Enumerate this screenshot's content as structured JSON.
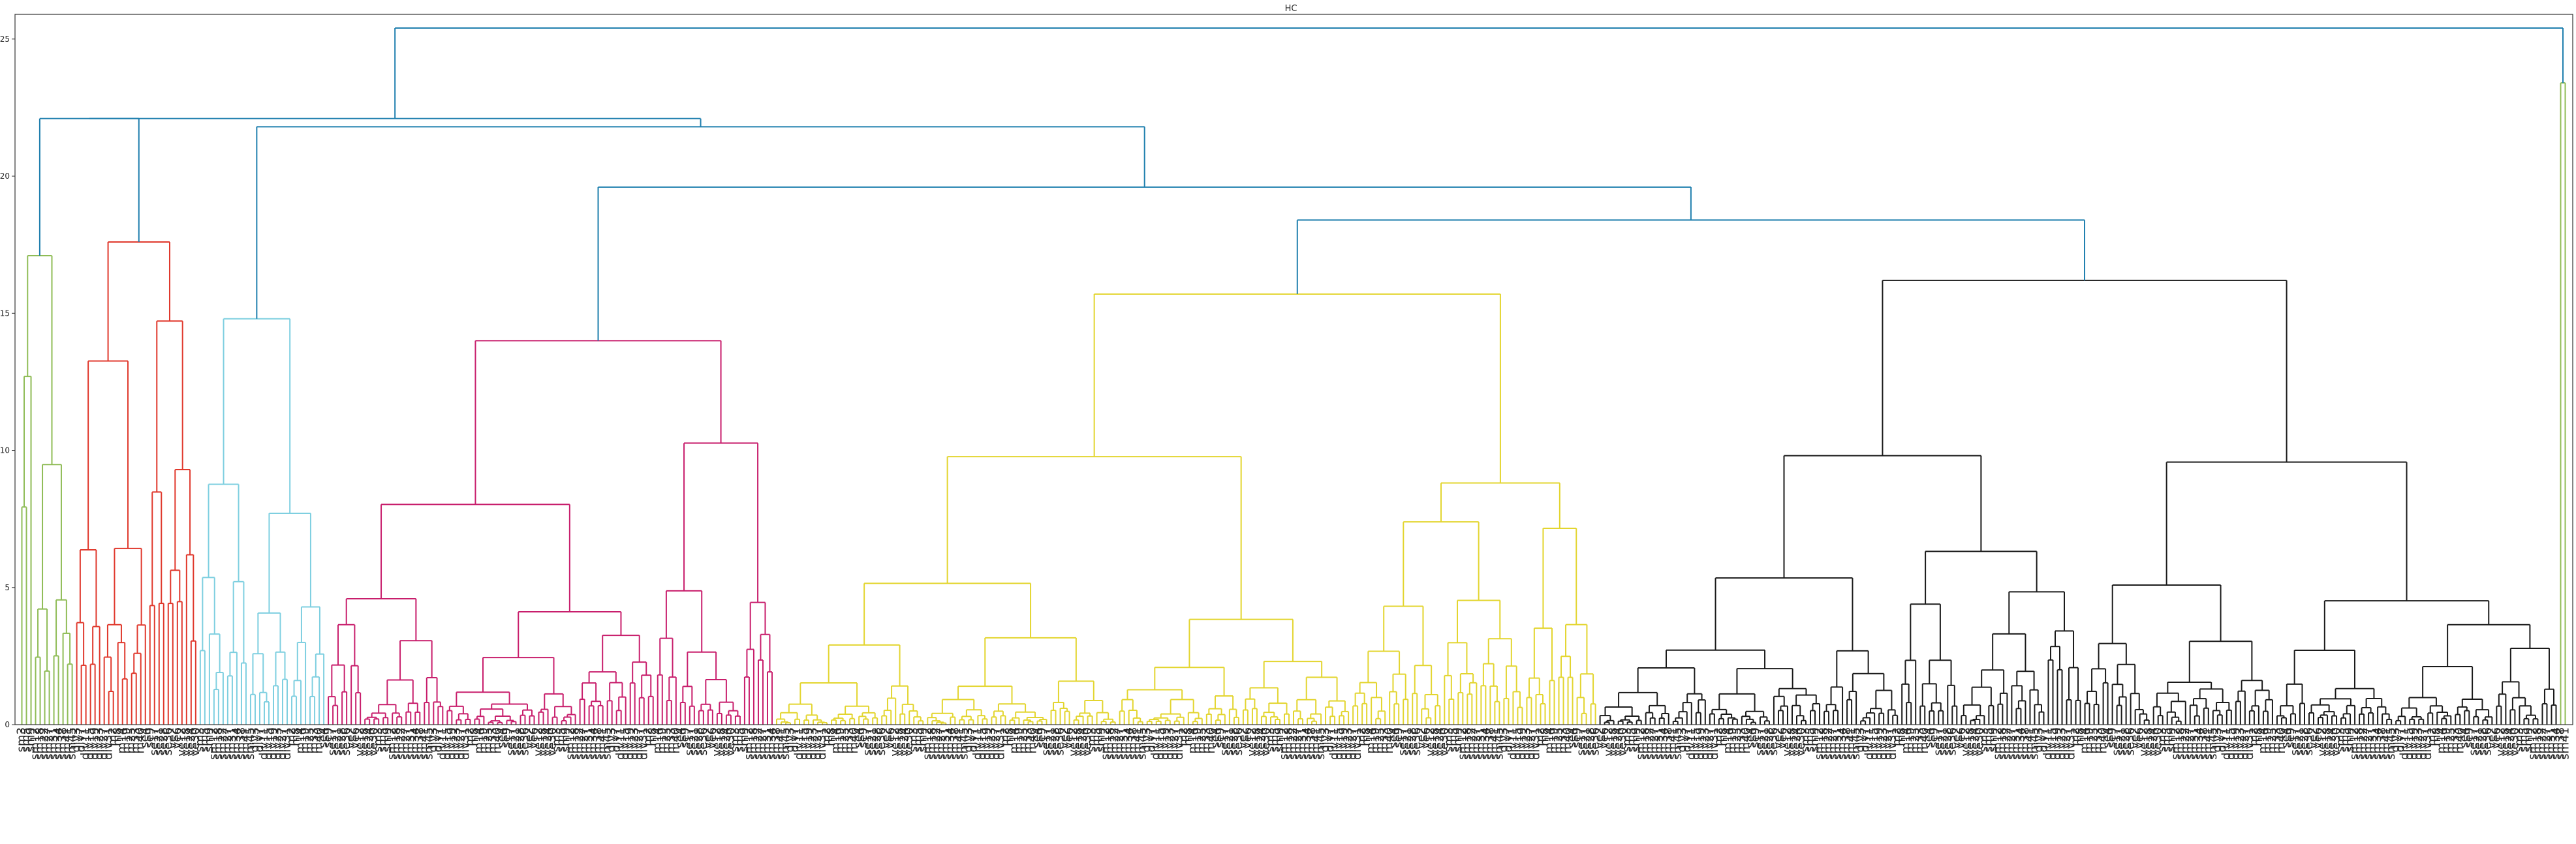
{
  "chart_data": {
    "type": "dendrogram",
    "title": "HC",
    "xlabel": "",
    "ylabel": "",
    "ylim": [
      0,
      25.9
    ],
    "yticks": [
      0,
      5,
      10,
      15,
      20,
      25
    ],
    "grid": false,
    "legend": "none",
    "colors": {
      "green": "#8fbc56",
      "red": "#e0382c",
      "cyan": "#7ecfe0",
      "magenta": "#c81e6c",
      "yellow": "#e3d52f",
      "black": "#1a1a1a",
      "blue": "#1f7fae"
    },
    "top_merges": [
      {
        "cluster": "green + red",
        "height": 22.1
      },
      {
        "cluster": "cyan + rest-left",
        "height": 21.8
      },
      {
        "cluster": "magenta + rest",
        "height": 19.6
      },
      {
        "cluster": "yellow + black",
        "height": 18.4
      },
      {
        "cluster": "root",
        "height": 25.4
      }
    ],
    "clusters": [
      {
        "color": "green",
        "leaves": 12,
        "top_height": 17.1
      },
      {
        "color": "red",
        "leaves": 27,
        "top_height": 17.6
      },
      {
        "color": "cyan",
        "leaves": 28,
        "top_height": 14.8
      },
      {
        "color": "magenta",
        "leaves": 98,
        "top_height": 14.0
      },
      {
        "color": "yellow",
        "leaves": 180,
        "top_height": 15.7
      },
      {
        "color": "black",
        "leaves": 210,
        "top_height": 16.2
      },
      {
        "color": "green",
        "leaves": 2,
        "top_height": 23.4
      }
    ],
    "leaf_labels": [
      "sm3",
      "sm5",
      "sm9",
      "sm12",
      "sm18",
      "sm22",
      "sm27",
      "sm31",
      "sm34",
      "sm38",
      "sm41",
      "sm45",
      "div3",
      "div7",
      "div11",
      "div15",
      "div19",
      "div23",
      "div27",
      "div31",
      "m2",
      "m8",
      "m14",
      "m19",
      "m25",
      "m33",
      "m40",
      "se4",
      "se9",
      "se17",
      "se21",
      "se28",
      "se36",
      "ve2",
      "ve6",
      "ve12",
      "ve18",
      "ve24",
      "ve30"
    ]
  }
}
